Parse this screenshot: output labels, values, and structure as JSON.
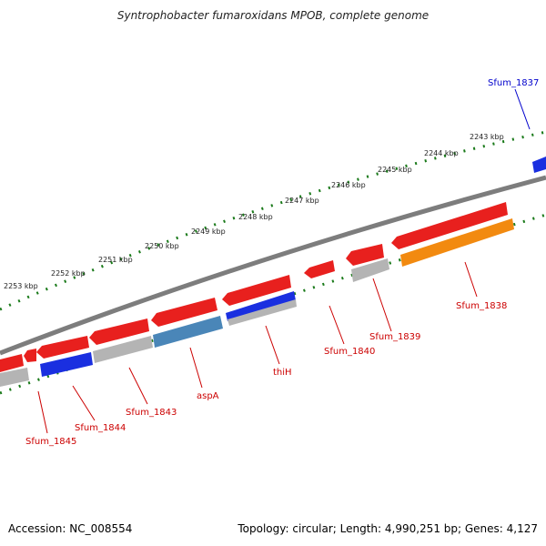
{
  "header": {
    "title": "Syntrophobacter fumaroxidans MPOB, complete genome"
  },
  "footer": {
    "accession": "Accession: NC_008554",
    "summary": "Topology: circular; Length: 4,990,251 bp; Genes: 4,127"
  },
  "colors": {
    "gene_red": "#e8201e",
    "gene_blue": "#1a2fe0",
    "gene_steel": "#4a86b8",
    "gene_gray": "#b4b4b4",
    "gene_orange": "#f28a10",
    "backbone": "#808080",
    "tick_green": "#1a7a1a",
    "label_red": "#cc0000",
    "label_blue": "#0000cc"
  },
  "kbp_labels": [
    "2243 kbp",
    "2244 kbp",
    "2245 kbp",
    "2246 kbp",
    "2247 kbp",
    "2248 kbp",
    "2249 kbp",
    "2250 kbp",
    "2251 kbp",
    "2252 kbp",
    "2253 kbp"
  ],
  "gene_labels": [
    "Sfum_1837",
    "Sfum_1838",
    "Sfum_1839",
    "Sfum_1840",
    "thiH",
    "aspA",
    "Sfum_1843",
    "Sfum_1844",
    "Sfum_1845"
  ]
}
